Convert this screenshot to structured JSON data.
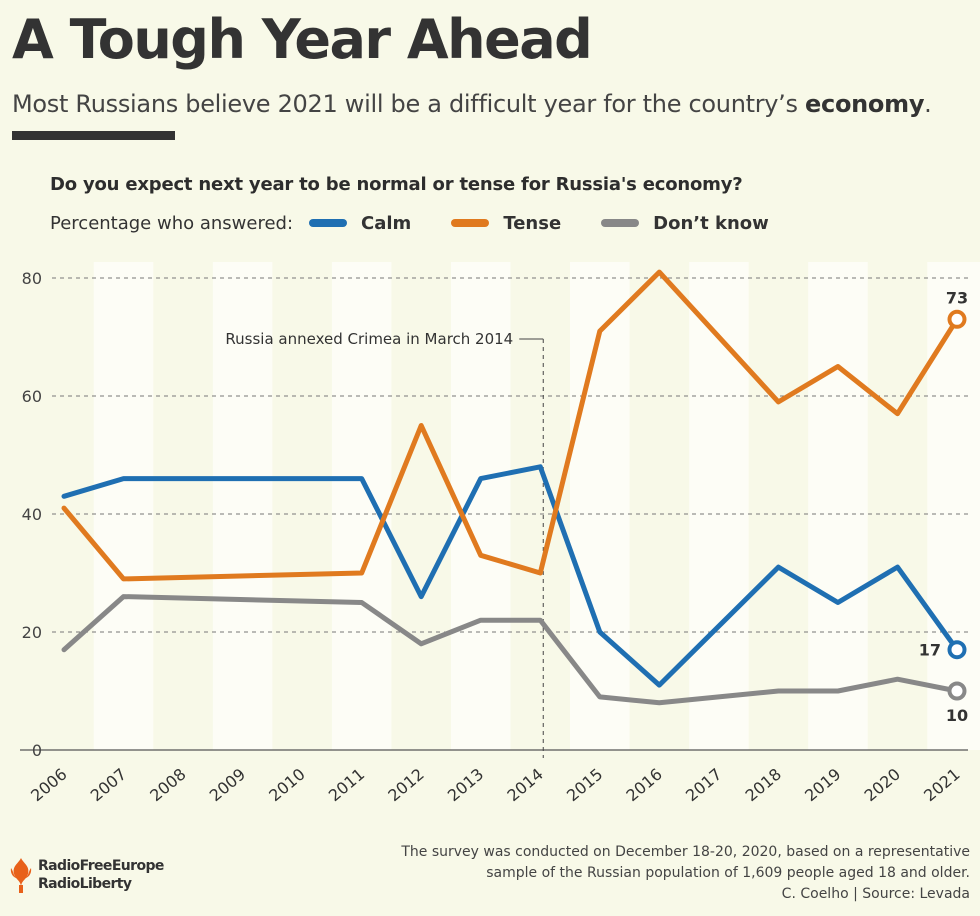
{
  "header": {
    "title": "A Tough Year Ahead",
    "subtitle_prefix": "Most Russians believe 2021 will be a difficult year for the country’s ",
    "subtitle_bold": "economy",
    "subtitle_suffix": "."
  },
  "chart_data": {
    "type": "line",
    "title": "Do you expect next year to be normal or tense for Russia's economy?",
    "legend_lead": "Percentage who answered:",
    "categories": [
      "2006",
      "2007",
      "2008",
      "2009",
      "2010",
      "2011",
      "2012",
      "2013",
      "2014",
      "2015",
      "2016",
      "2017",
      "2018",
      "2019",
      "2020",
      "2021"
    ],
    "ylim": [
      0,
      80
    ],
    "yticks": [
      0,
      20,
      40,
      60,
      80
    ],
    "series": [
      {
        "name": "Calm",
        "color": "#1f6fb2",
        "points": [
          [
            2006,
            43
          ],
          [
            2007,
            46
          ],
          [
            2011,
            46
          ],
          [
            2012,
            26
          ],
          [
            2013,
            46
          ],
          [
            2014,
            48
          ],
          [
            2015,
            20
          ],
          [
            2016,
            11
          ],
          [
            2018,
            31
          ],
          [
            2019,
            25
          ],
          [
            2020,
            31
          ],
          [
            2021,
            17
          ]
        ]
      },
      {
        "name": "Tense",
        "color": "#e07a1f",
        "points": [
          [
            2006,
            41
          ],
          [
            2007,
            29
          ],
          [
            2011,
            30
          ],
          [
            2012,
            55
          ],
          [
            2013,
            33
          ],
          [
            2014,
            30
          ],
          [
            2015,
            71
          ],
          [
            2016,
            81
          ],
          [
            2018,
            59
          ],
          [
            2019,
            65
          ],
          [
            2020,
            57
          ],
          [
            2021,
            73
          ]
        ]
      },
      {
        "name": "Don’t know",
        "color": "#888888",
        "points": [
          [
            2006,
            17
          ],
          [
            2007,
            26
          ],
          [
            2011,
            25
          ],
          [
            2012,
            18
          ],
          [
            2013,
            22
          ],
          [
            2014,
            22
          ],
          [
            2015,
            9
          ],
          [
            2016,
            8
          ],
          [
            2018,
            10
          ],
          [
            2019,
            10
          ],
          [
            2020,
            12
          ],
          [
            2021,
            10
          ]
        ]
      }
    ],
    "end_labels": [
      {
        "series": "Tense",
        "value": 73,
        "text": "73"
      },
      {
        "series": "Calm",
        "value": 17,
        "text": "17"
      },
      {
        "series": "Don’t know",
        "value": 10,
        "text": "10"
      }
    ],
    "annotation": {
      "text": "Russia annexed Crimea in March 2014",
      "x": 2014.05
    }
  },
  "footer": {
    "note_line1": "The survey was conducted on December 18-20, 2020, based on a representative",
    "note_line2": "sample of the Russian population of 1,609 people aged 18 and older.",
    "credit": "C. Coelho | Source: Levada",
    "logo_line1": "RadioFreeEurope",
    "logo_line2": "RadioLiberty"
  },
  "colors": {
    "background": "#f8f9e8",
    "band": "#fdfdf6",
    "calm": "#1f6fb2",
    "tense": "#e07a1f",
    "dont_know": "#888888",
    "logo": "#e8611a"
  }
}
